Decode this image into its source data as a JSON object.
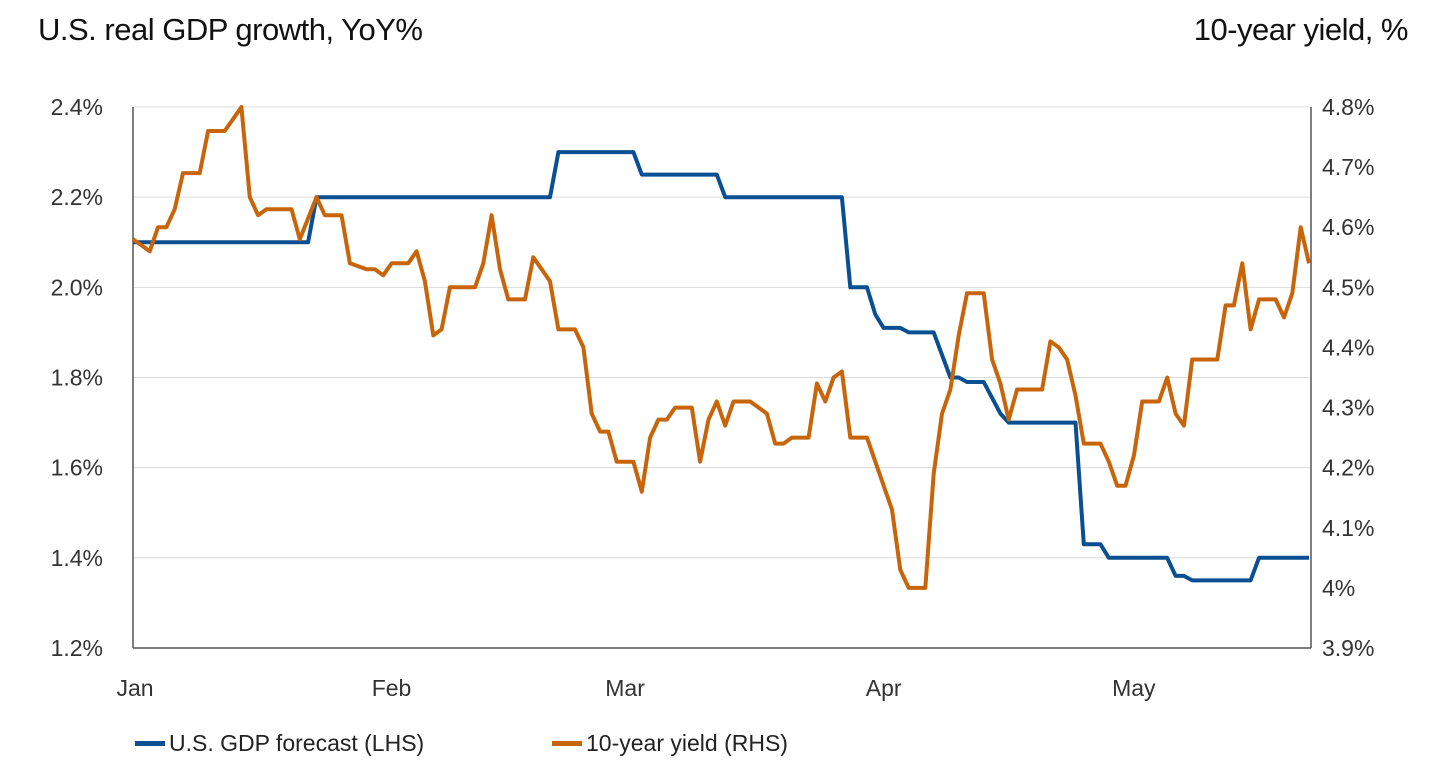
{
  "chart_data": {
    "type": "line",
    "title_left": "U.S. real GDP growth, YoY%",
    "title_right": "10-year yield, %",
    "x_ticks": [
      {
        "label": "Jan",
        "date": "01-01"
      },
      {
        "label": "Feb",
        "date": "02-01"
      },
      {
        "label": "Mar",
        "date": "03-01"
      },
      {
        "label": "Apr",
        "date": "04-01"
      },
      {
        "label": "May",
        "date": "05-01"
      }
    ],
    "x_range": [
      "01-01",
      "05-22"
    ],
    "y_left": {
      "range": [
        1.2,
        2.4
      ],
      "ticks": [
        1.2,
        1.4,
        1.6,
        1.8,
        2.0,
        2.2,
        2.4
      ],
      "tick_labels": [
        "1.2%",
        "1.4%",
        "1.6%",
        "1.8%",
        "2.0%",
        "2.2%",
        "2.4%"
      ]
    },
    "y_right": {
      "range": [
        3.9,
        4.8
      ],
      "ticks": [
        3.9,
        4.0,
        4.1,
        4.2,
        4.3,
        4.4,
        4.5,
        4.6,
        4.7,
        4.8
      ],
      "tick_labels": [
        "3.9%",
        "4%",
        "4.1%",
        "4.2%",
        "4.3%",
        "4.4%",
        "4.5%",
        "4.6%",
        "4.7%",
        "4.8%"
      ]
    },
    "grid": true,
    "legend_position": "bottom-left",
    "series": [
      {
        "name": "U.S. GDP forecast (LHS)",
        "axis": "left",
        "color": "#0b4f93",
        "points": [
          [
            "01-01",
            2.1
          ],
          [
            "01-22",
            2.1
          ],
          [
            "01-23",
            2.2
          ],
          [
            "02-20",
            2.2
          ],
          [
            "02-21",
            2.3
          ],
          [
            "03-02",
            2.3
          ],
          [
            "03-03",
            2.25
          ],
          [
            "03-12",
            2.25
          ],
          [
            "03-13",
            2.2
          ],
          [
            "03-27",
            2.2
          ],
          [
            "03-28",
            2.0
          ],
          [
            "03-30",
            2.0
          ],
          [
            "03-31",
            1.94
          ],
          [
            "04-01",
            1.91
          ],
          [
            "04-03",
            1.91
          ],
          [
            "04-04",
            1.9
          ],
          [
            "04-07",
            1.9
          ],
          [
            "04-09",
            1.8
          ],
          [
            "04-10",
            1.8
          ],
          [
            "04-11",
            1.79
          ],
          [
            "04-13",
            1.79
          ],
          [
            "04-15",
            1.72
          ],
          [
            "04-16",
            1.7
          ],
          [
            "04-24",
            1.7
          ],
          [
            "04-25",
            1.43
          ],
          [
            "04-27",
            1.43
          ],
          [
            "04-28",
            1.4
          ],
          [
            "05-05",
            1.4
          ],
          [
            "05-06",
            1.36
          ],
          [
            "05-07",
            1.36
          ],
          [
            "05-08",
            1.35
          ],
          [
            "05-15",
            1.35
          ],
          [
            "05-16",
            1.4
          ],
          [
            "05-22",
            1.4
          ]
        ]
      },
      {
        "name": "10-year yield (RHS)",
        "axis": "right",
        "color": "#c8650a",
        "points": [
          [
            "01-01",
            4.58
          ],
          [
            "01-03",
            4.56
          ],
          [
            "01-04",
            4.6
          ],
          [
            "01-05",
            4.6
          ],
          [
            "01-06",
            4.63
          ],
          [
            "01-07",
            4.69
          ],
          [
            "01-08",
            4.69
          ],
          [
            "01-09",
            4.69
          ],
          [
            "01-10",
            4.76
          ],
          [
            "01-12",
            4.76
          ],
          [
            "01-13",
            4.78
          ],
          [
            "01-14",
            4.8
          ],
          [
            "01-15",
            4.65
          ],
          [
            "01-16",
            4.62
          ],
          [
            "01-17",
            4.63
          ],
          [
            "01-20",
            4.63
          ],
          [
            "01-21",
            4.58
          ],
          [
            "01-23",
            4.65
          ],
          [
            "01-24",
            4.62
          ],
          [
            "01-26",
            4.62
          ],
          [
            "01-27",
            4.54
          ],
          [
            "01-29",
            4.53
          ],
          [
            "01-30",
            4.53
          ],
          [
            "01-31",
            4.52
          ],
          [
            "02-01",
            4.54
          ],
          [
            "02-02",
            4.54
          ],
          [
            "02-03",
            4.54
          ],
          [
            "02-04",
            4.56
          ],
          [
            "02-05",
            4.51
          ],
          [
            "02-06",
            4.42
          ],
          [
            "02-07",
            4.43
          ],
          [
            "02-08",
            4.5
          ],
          [
            "02-10",
            4.5
          ],
          [
            "02-11",
            4.5
          ],
          [
            "02-12",
            4.54
          ],
          [
            "02-13",
            4.62
          ],
          [
            "02-14",
            4.53
          ],
          [
            "02-15",
            4.48
          ],
          [
            "02-17",
            4.48
          ],
          [
            "02-18",
            4.55
          ],
          [
            "02-19",
            4.53
          ],
          [
            "02-20",
            4.51
          ],
          [
            "02-21",
            4.43
          ],
          [
            "02-23",
            4.43
          ],
          [
            "02-24",
            4.4
          ],
          [
            "02-25",
            4.29
          ],
          [
            "02-26",
            4.26
          ],
          [
            "02-27",
            4.26
          ],
          [
            "02-28",
            4.21
          ],
          [
            "03-02",
            4.21
          ],
          [
            "03-03",
            4.16
          ],
          [
            "03-04",
            4.25
          ],
          [
            "03-05",
            4.28
          ],
          [
            "03-06",
            4.28
          ],
          [
            "03-07",
            4.3
          ],
          [
            "03-09",
            4.3
          ],
          [
            "03-10",
            4.21
          ],
          [
            "03-11",
            4.28
          ],
          [
            "03-12",
            4.31
          ],
          [
            "03-13",
            4.27
          ],
          [
            "03-14",
            4.31
          ],
          [
            "03-16",
            4.31
          ],
          [
            "03-18",
            4.29
          ],
          [
            "03-19",
            4.24
          ],
          [
            "03-20",
            4.24
          ],
          [
            "03-21",
            4.25
          ],
          [
            "03-23",
            4.25
          ],
          [
            "03-24",
            4.34
          ],
          [
            "03-25",
            4.31
          ],
          [
            "03-26",
            4.35
          ],
          [
            "03-27",
            4.36
          ],
          [
            "03-28",
            4.25
          ],
          [
            "03-30",
            4.25
          ],
          [
            "03-31",
            4.21
          ],
          [
            "04-02",
            4.13
          ],
          [
            "04-03",
            4.03
          ],
          [
            "04-04",
            4.0
          ],
          [
            "04-06",
            4.0
          ],
          [
            "04-07",
            4.19
          ],
          [
            "04-08",
            4.29
          ],
          [
            "04-09",
            4.33
          ],
          [
            "04-10",
            4.42
          ],
          [
            "04-11",
            4.49
          ],
          [
            "04-13",
            4.49
          ],
          [
            "04-14",
            4.38
          ],
          [
            "04-15",
            4.34
          ],
          [
            "04-16",
            4.28
          ],
          [
            "04-17",
            4.33
          ],
          [
            "04-20",
            4.33
          ],
          [
            "04-21",
            4.41
          ],
          [
            "04-22",
            4.4
          ],
          [
            "04-23",
            4.38
          ],
          [
            "04-24",
            4.32
          ],
          [
            "04-25",
            4.24
          ],
          [
            "04-27",
            4.24
          ],
          [
            "04-28",
            4.21
          ],
          [
            "04-29",
            4.17
          ],
          [
            "04-30",
            4.17
          ],
          [
            "05-01",
            4.22
          ],
          [
            "05-02",
            4.31
          ],
          [
            "05-04",
            4.31
          ],
          [
            "05-05",
            4.35
          ],
          [
            "05-06",
            4.29
          ],
          [
            "05-07",
            4.27
          ],
          [
            "05-08",
            4.38
          ],
          [
            "05-11",
            4.38
          ],
          [
            "05-12",
            4.47
          ],
          [
            "05-13",
            4.47
          ],
          [
            "05-14",
            4.54
          ],
          [
            "05-15",
            4.43
          ],
          [
            "05-16",
            4.48
          ],
          [
            "05-18",
            4.48
          ],
          [
            "05-19",
            4.45
          ],
          [
            "05-20",
            4.49
          ],
          [
            "05-21",
            4.6
          ],
          [
            "05-22",
            4.54
          ]
        ]
      }
    ]
  }
}
